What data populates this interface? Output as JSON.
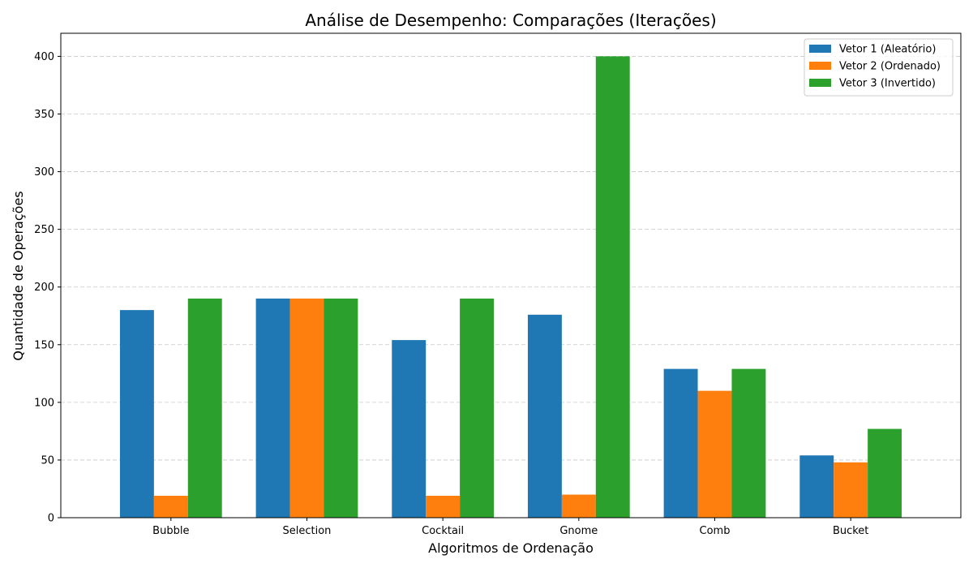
{
  "chart_data": {
    "type": "bar",
    "title": "Análise de Desempenho: Comparações (Iterações)",
    "xlabel": "Algoritmos de Ordenação",
    "ylabel": "Quantidade de Operações",
    "categories": [
      "Bubble",
      "Selection",
      "Cocktail",
      "Gnome",
      "Comb",
      "Bucket"
    ],
    "series": [
      {
        "name": "Vetor 1 (Aleatório)",
        "color": "#1f77b4",
        "values": [
          180,
          190,
          154,
          176,
          129,
          54
        ]
      },
      {
        "name": "Vetor 2 (Ordenado)",
        "color": "#ff7f0e",
        "values": [
          19,
          190,
          19,
          20,
          110,
          48
        ]
      },
      {
        "name": "Vetor 3 (Invertido)",
        "color": "#2ca02c",
        "values": [
          190,
          190,
          190,
          400,
          129,
          77
        ]
      }
    ],
    "ylim": [
      0,
      420
    ],
    "yticks": [
      0,
      50,
      100,
      150,
      200,
      250,
      300,
      350,
      400
    ],
    "grid": "y-dashed",
    "legend_position": "top-right"
  }
}
